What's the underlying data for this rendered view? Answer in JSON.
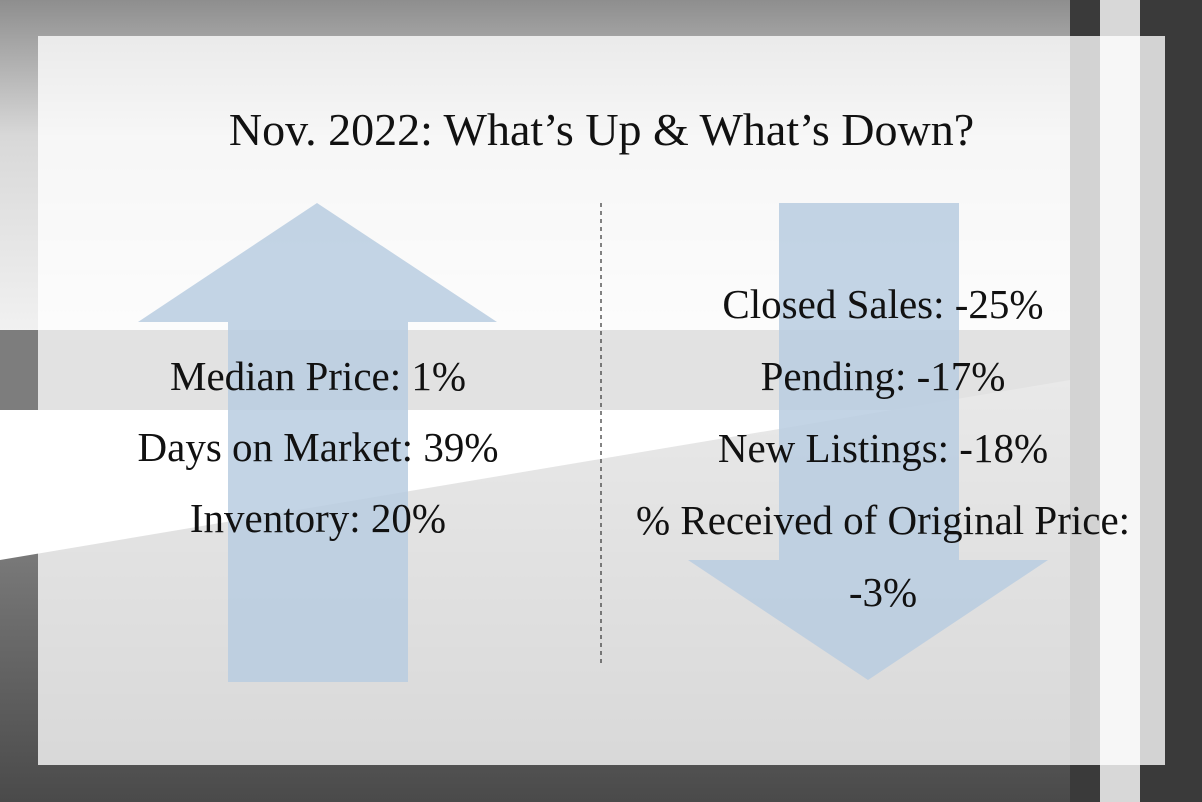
{
  "title": "Nov. 2022: What’s Up & What’s Down?",
  "up": {
    "items": [
      "Median Price: 1%",
      "Days on Market: 39%",
      "Inventory: 20%"
    ]
  },
  "down": {
    "items": [
      "Closed Sales: -25%",
      "Pending: -17%",
      "New Listings: -18%",
      "% Received of Original Price: -3%"
    ]
  }
}
